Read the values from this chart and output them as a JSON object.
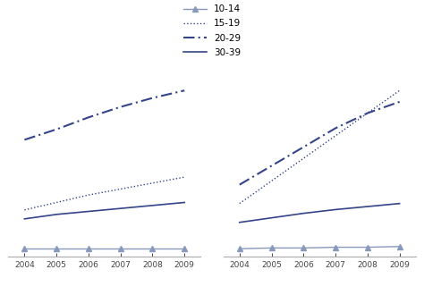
{
  "years": [
    2004,
    2005,
    2006,
    2007,
    2008,
    2009
  ],
  "left": {
    "10-14": [
      2,
      2,
      2,
      2,
      2,
      2
    ],
    "15-19": [
      28,
      33,
      38,
      42,
      46,
      50
    ],
    "20-29": [
      75,
      82,
      90,
      97,
      103,
      108
    ],
    "30-39": [
      22,
      25,
      27,
      29,
      31,
      33
    ]
  },
  "right": {
    "10-14": [
      5,
      6,
      6,
      7,
      7,
      8
    ],
    "15-19": [
      65,
      95,
      125,
      155,
      185,
      215
    ],
    "20-29": [
      90,
      115,
      140,
      165,
      185,
      200
    ],
    "30-39": [
      40,
      46,
      52,
      57,
      61,
      65
    ]
  },
  "color_light": "#8899bb",
  "color_main": "#334488",
  "bg_color": "#ffffff",
  "legend_labels": [
    "10-14",
    "15-19",
    "20-29",
    "30-39"
  ],
  "xlim": [
    2003.5,
    2009.5
  ],
  "tick_fontsize": 6.5,
  "legend_fontsize": 7.5
}
